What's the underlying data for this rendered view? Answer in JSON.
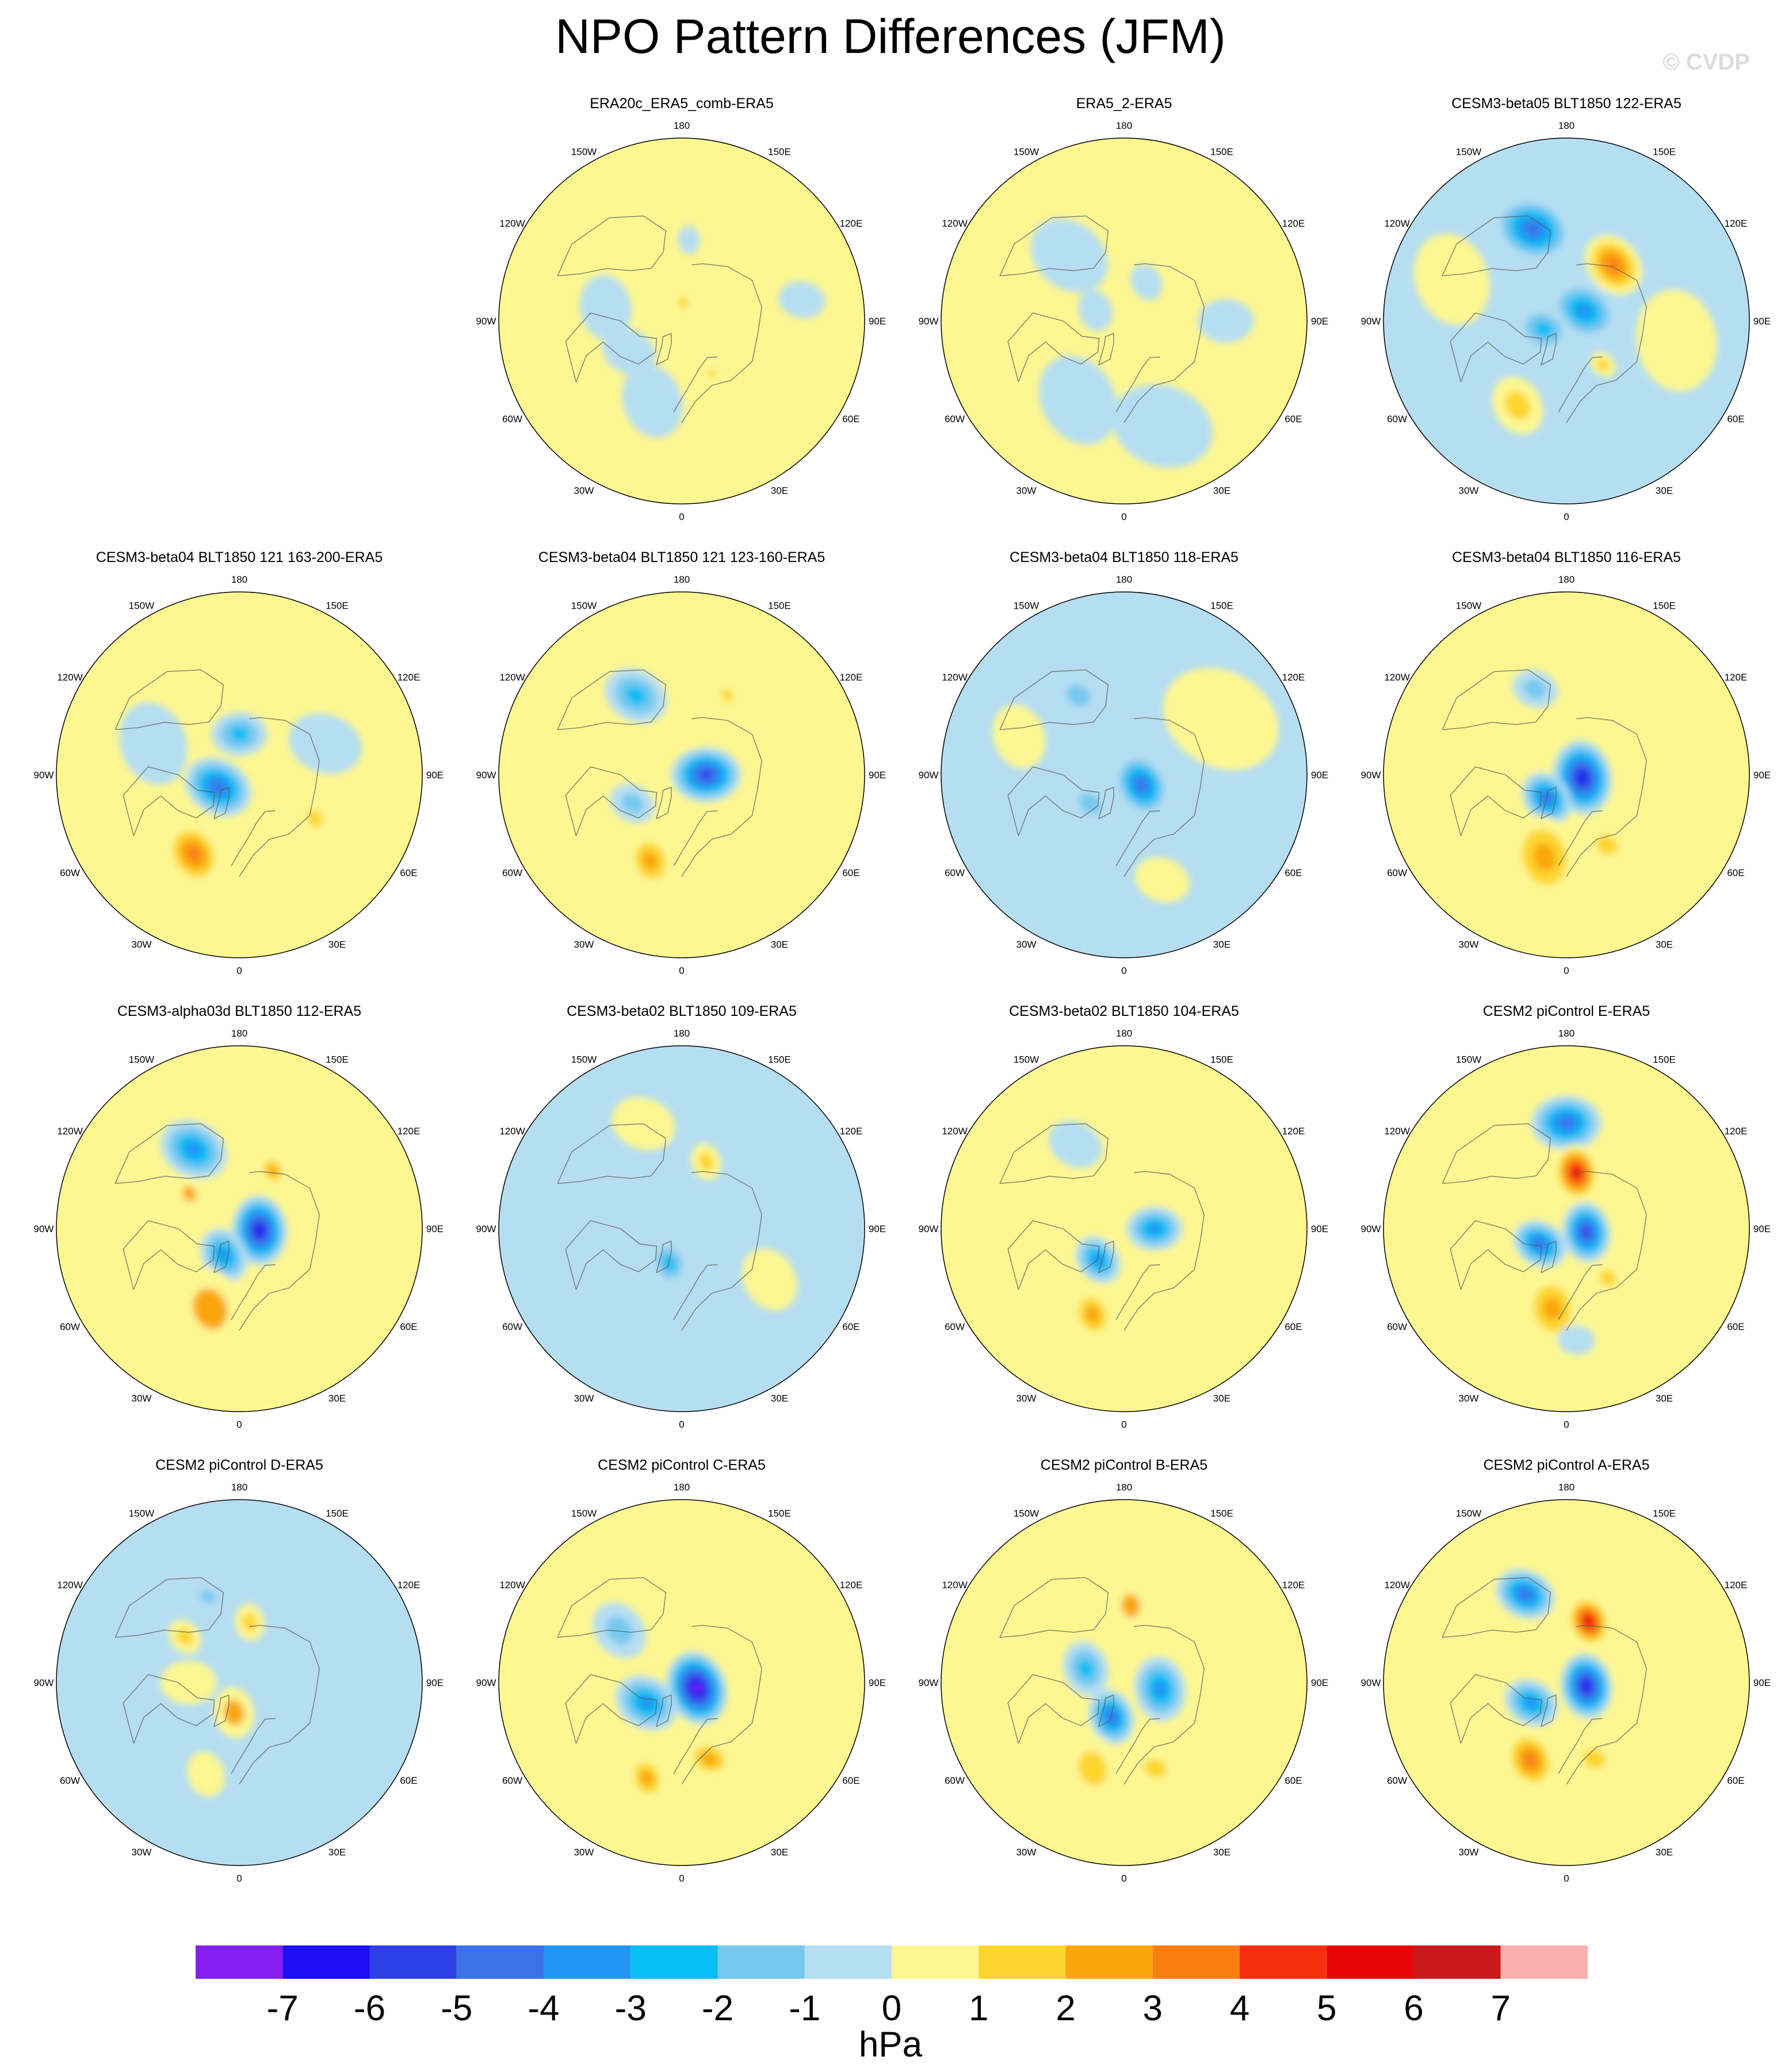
{
  "title": "NPO Pattern Differences (JFM)",
  "watermark": "© CVDP",
  "units": "hPa",
  "colors": {
    "land_outline": "#555555",
    "frame": "#000000",
    "levels": [
      {
        "lo": null,
        "hi": -7,
        "color": "#8520f0"
      },
      {
        "lo": -7,
        "hi": -6,
        "color": "#1e10f5"
      },
      {
        "lo": -6,
        "hi": -5,
        "color": "#2e3fe6"
      },
      {
        "lo": -5,
        "hi": -4,
        "color": "#3a72e8"
      },
      {
        "lo": -4,
        "hi": -3,
        "color": "#2294f2"
      },
      {
        "lo": -3,
        "hi": -2,
        "color": "#06bdf4"
      },
      {
        "lo": -2,
        "hi": -1,
        "color": "#76c8f0"
      },
      {
        "lo": -1,
        "hi": 0,
        "color": "#b6def2"
      },
      {
        "lo": 0,
        "hi": 1,
        "color": "#fdf792"
      },
      {
        "lo": 1,
        "hi": 2,
        "color": "#fdd52e"
      },
      {
        "lo": 2,
        "hi": 3,
        "color": "#fba50a"
      },
      {
        "lo": 3,
        "hi": 4,
        "color": "#fa7f13"
      },
      {
        "lo": 4,
        "hi": 5,
        "color": "#f72e0e"
      },
      {
        "lo": 5,
        "hi": 6,
        "color": "#e60608"
      },
      {
        "lo": 6,
        "hi": 7,
        "color": "#c91b1c"
      },
      {
        "lo": 7,
        "hi": null,
        "color": "#fdb0b0"
      }
    ]
  },
  "longitude_labels": [
    "180",
    "150E",
    "120E",
    "90E",
    "60E",
    "30E",
    "0",
    "30W",
    "60W",
    "90W",
    "120W",
    "150W"
  ],
  "chart_data": {
    "type": "heatmap",
    "projection": "north-polar-stereographic",
    "variable": "NPO sea level pressure pattern difference",
    "season": "JFM",
    "units": "hPa",
    "colorbar_ticks": [
      -7,
      -6,
      -5,
      -4,
      -3,
      -2,
      -1,
      0,
      1,
      2,
      3,
      4,
      5,
      6,
      7
    ],
    "grid": {
      "rows": 4,
      "cols": 4
    },
    "panels": [
      {
        "title": "ERA20c_ERA5_comb-ERA5",
        "row": 0,
        "col": 1,
        "background": 0.5,
        "features": [
          {
            "lon": 175,
            "colat": 40,
            "value": -0.5,
            "r": 6
          },
          {
            "lon": 175,
            "colat": 9,
            "value": 1.5,
            "r": 5
          },
          {
            "lon": 340,
            "colat": 42,
            "value": -0.5,
            "r": 16
          },
          {
            "lon": 260,
            "colat": 38,
            "value": -0.5,
            "r": 14
          },
          {
            "lon": 300,
            "colat": 30,
            "value": -0.6,
            "r": 12
          },
          {
            "lon": 30,
            "colat": 30,
            "value": 1.4,
            "r": 4
          },
          {
            "lon": 100,
            "colat": 60,
            "value": -0.5,
            "r": 10
          }
        ]
      },
      {
        "title": "ERA5_2-ERA5",
        "row": 0,
        "col": 2,
        "background": 0.4,
        "features": [
          {
            "lon": 20,
            "colat": 55,
            "value": -0.6,
            "r": 22
          },
          {
            "lon": 330,
            "colat": 45,
            "value": -0.6,
            "r": 20
          },
          {
            "lon": 220,
            "colat": 42,
            "value": -0.6,
            "r": 18
          },
          {
            "lon": 250,
            "colat": 15,
            "value": -0.5,
            "r": 9
          },
          {
            "lon": 150,
            "colat": 22,
            "value": -0.5,
            "r": 8
          },
          {
            "lon": 90,
            "colat": 50,
            "value": -0.5,
            "r": 12
          }
        ]
      },
      {
        "title": "CESM3-beta05 BLT1850 122-ERA5",
        "row": 0,
        "col": 3,
        "background": -0.5,
        "features": [
          {
            "lon": 200,
            "colat": 48,
            "value": -4.5,
            "r": 17
          },
          {
            "lon": 140,
            "colat": 36,
            "value": 3.2,
            "r": 14
          },
          {
            "lon": 120,
            "colat": 10,
            "value": -3.5,
            "r": 15
          },
          {
            "lon": 290,
            "colat": 12,
            "value": -3.0,
            "r": 12
          },
          {
            "lon": 330,
            "colat": 48,
            "value": 1.6,
            "r": 13
          },
          {
            "lon": 40,
            "colat": 28,
            "value": 1.5,
            "r": 6
          },
          {
            "lon": 250,
            "colat": 60,
            "value": 0.5,
            "r": 20
          },
          {
            "lon": 80,
            "colat": 55,
            "value": 0.5,
            "r": 22
          }
        ]
      },
      {
        "title": "CESM3-beta04 BLT1850 121 163-200-ERA5",
        "row": 1,
        "col": 0,
        "background": 0.5,
        "features": [
          {
            "lon": 300,
            "colat": 12,
            "value": -4.5,
            "r": 15
          },
          {
            "lon": 180,
            "colat": 20,
            "value": -2.5,
            "r": 12
          },
          {
            "lon": 330,
            "colat": 45,
            "value": 3.2,
            "r": 14
          },
          {
            "lon": 60,
            "colat": 43,
            "value": 1.8,
            "r": 8
          },
          {
            "lon": 250,
            "colat": 45,
            "value": -0.6,
            "r": 18
          },
          {
            "lon": 110,
            "colat": 45,
            "value": -0.6,
            "r": 16
          }
        ]
      },
      {
        "title": "CESM3-beta04 BLT1850 121 123-160-ERA5",
        "row": 1,
        "col": 1,
        "background": 0.5,
        "features": [
          {
            "lon": 90,
            "colat": 12,
            "value": -6.0,
            "r": 15
          },
          {
            "lon": 210,
            "colat": 45,
            "value": -3.0,
            "r": 14
          },
          {
            "lon": 340,
            "colat": 45,
            "value": 2.8,
            "r": 12
          },
          {
            "lon": 150,
            "colat": 45,
            "value": 1.3,
            "r": 6
          },
          {
            "lon": 300,
            "colat": 28,
            "value": -1.5,
            "r": 10
          }
        ]
      },
      {
        "title": "CESM3-beta04 BLT1850 118-ERA5",
        "row": 1,
        "col": 2,
        "background": -0.5,
        "features": [
          {
            "lon": 60,
            "colat": 10,
            "value": -4.5,
            "r": 14
          },
          {
            "lon": 210,
            "colat": 45,
            "value": -1.8,
            "r": 11
          },
          {
            "lon": 310,
            "colat": 22,
            "value": -2.0,
            "r": 10
          },
          {
            "lon": 120,
            "colat": 55,
            "value": 0.5,
            "r": 26
          },
          {
            "lon": 250,
            "colat": 55,
            "value": 0.5,
            "r": 14
          },
          {
            "lon": 20,
            "colat": 55,
            "value": 0.5,
            "r": 12
          }
        ]
      },
      {
        "title": "CESM3-beta04 BLT1850 116-ERA5",
        "row": 1,
        "col": 3,
        "background": 0.5,
        "features": [
          {
            "lon": 80,
            "colat": 8,
            "value": -6.5,
            "r": 16
          },
          {
            "lon": 320,
            "colat": 15,
            "value": -4.5,
            "r": 12
          },
          {
            "lon": 200,
            "colat": 45,
            "value": -1.6,
            "r": 10
          },
          {
            "lon": 345,
            "colat": 42,
            "value": 2.6,
            "r": 18
          },
          {
            "lon": 30,
            "colat": 40,
            "value": 1.7,
            "r": 10
          }
        ]
      },
      {
        "title": "CESM3-alpha03d BLT1850 112-ERA5",
        "row": 2,
        "col": 0,
        "background": 0.5,
        "features": [
          {
            "lon": 85,
            "colat": 10,
            "value": -6.5,
            "r": 15
          },
          {
            "lon": 330,
            "colat": 15,
            "value": -4.0,
            "r": 12
          },
          {
            "lon": 210,
            "colat": 45,
            "value": -3.5,
            "r": 15
          },
          {
            "lon": 150,
            "colat": 33,
            "value": 2.2,
            "r": 7
          },
          {
            "lon": 235,
            "colat": 30,
            "value": 2.0,
            "r": 7
          },
          {
            "lon": 340,
            "colat": 42,
            "value": 2.0,
            "r": 18
          }
        ]
      },
      {
        "title": "CESM3-beta02 BLT1850 109-ERA5",
        "row": 2,
        "col": 1,
        "background": -0.5,
        "features": [
          {
            "lon": 340,
            "colat": 18,
            "value": -2.2,
            "r": 10
          },
          {
            "lon": 160,
            "colat": 35,
            "value": 1.6,
            "r": 8
          },
          {
            "lon": 200,
            "colat": 55,
            "value": 0.5,
            "r": 14
          },
          {
            "lon": 60,
            "colat": 50,
            "value": 0.5,
            "r": 14
          }
        ]
      },
      {
        "title": "CESM3-beta02 BLT1850 104-ERA5",
        "row": 2,
        "col": 2,
        "background": 0.5,
        "features": [
          {
            "lon": 90,
            "colat": 15,
            "value": -3.5,
            "r": 12
          },
          {
            "lon": 320,
            "colat": 20,
            "value": -3.5,
            "r": 11
          },
          {
            "lon": 210,
            "colat": 48,
            "value": -0.6,
            "r": 12
          },
          {
            "lon": 340,
            "colat": 45,
            "value": 2.2,
            "r": 11
          }
        ]
      },
      {
        "title": "CESM2 piControl E-ERA5",
        "row": 2,
        "col": 3,
        "background": 0.5,
        "features": [
          {
            "lon": 180,
            "colat": 52,
            "value": -4.5,
            "r": 15
          },
          {
            "lon": 170,
            "colat": 28,
            "value": 5.5,
            "r": 12
          },
          {
            "lon": 80,
            "colat": 10,
            "value": -5.5,
            "r": 13
          },
          {
            "lon": 300,
            "colat": 15,
            "value": -4.5,
            "r": 12
          },
          {
            "lon": 350,
            "colat": 40,
            "value": 2.8,
            "r": 15
          },
          {
            "lon": 40,
            "colat": 32,
            "value": 1.8,
            "r": 8
          },
          {
            "lon": 5,
            "colat": 55,
            "value": -0.6,
            "r": 8
          }
        ]
      },
      {
        "title": "CESM2 piControl D-ERA5",
        "row": 3,
        "col": 0,
        "background": -0.5,
        "features": [
          {
            "lon": 350,
            "colat": 15,
            "value": 2.0,
            "r": 11
          },
          {
            "lon": 170,
            "colat": 30,
            "value": 1.8,
            "r": 8
          },
          {
            "lon": 230,
            "colat": 35,
            "value": 1.3,
            "r": 8
          },
          {
            "lon": 200,
            "colat": 45,
            "value": -1.5,
            "r": 7
          },
          {
            "lon": 270,
            "colat": 25,
            "value": 0.8,
            "r": 12
          },
          {
            "lon": 340,
            "colat": 48,
            "value": 0.6,
            "r": 10
          }
        ]
      },
      {
        "title": "CESM2 piControl C-ERA5",
        "row": 3,
        "col": 1,
        "background": 0.5,
        "features": [
          {
            "lon": 70,
            "colat": 8,
            "value": -7.5,
            "r": 16
          },
          {
            "lon": 300,
            "colat": 20,
            "value": -4.0,
            "r": 14
          },
          {
            "lon": 230,
            "colat": 40,
            "value": -1.8,
            "r": 13
          },
          {
            "lon": 340,
            "colat": 50,
            "value": 2.5,
            "r": 10
          },
          {
            "lon": 20,
            "colat": 40,
            "value": 2.2,
            "r": 10
          }
        ]
      },
      {
        "title": "CESM2 piControl B-ERA5",
        "row": 3,
        "col": 2,
        "background": 0.5,
        "features": [
          {
            "lon": 340,
            "colat": 18,
            "value": -4.5,
            "r": 12
          },
          {
            "lon": 80,
            "colat": 18,
            "value": -4.0,
            "r": 14
          },
          {
            "lon": 250,
            "colat": 20,
            "value": -3.0,
            "r": 12
          },
          {
            "lon": 175,
            "colat": 38,
            "value": 2.0,
            "r": 10
          },
          {
            "lon": 340,
            "colat": 45,
            "value": 1.6,
            "r": 15
          },
          {
            "lon": 20,
            "colat": 45,
            "value": 1.6,
            "r": 10
          }
        ]
      },
      {
        "title": "CESM2 piControl A-ERA5",
        "row": 3,
        "col": 3,
        "background": 0.5,
        "features": [
          {
            "lon": 205,
            "colat": 48,
            "value": -4.5,
            "r": 13
          },
          {
            "lon": 160,
            "colat": 32,
            "value": 5.5,
            "r": 11
          },
          {
            "lon": 80,
            "colat": 10,
            "value": -6.5,
            "r": 14
          },
          {
            "lon": 300,
            "colat": 20,
            "value": -3.5,
            "r": 12
          },
          {
            "lon": 335,
            "colat": 42,
            "value": 3.2,
            "r": 13
          },
          {
            "lon": 20,
            "colat": 40,
            "value": 1.6,
            "r": 10
          }
        ]
      }
    ]
  }
}
